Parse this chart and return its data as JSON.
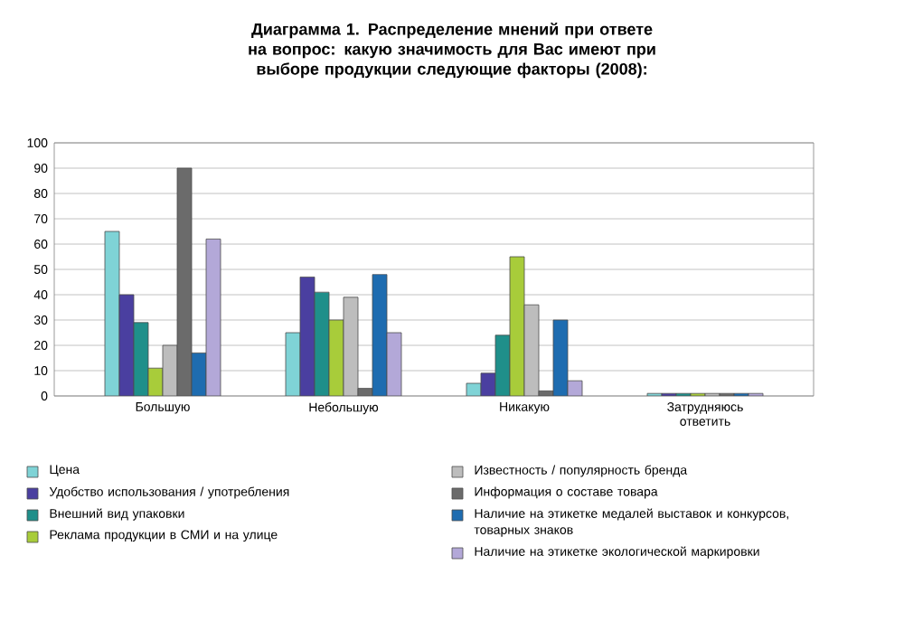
{
  "chart_data": {
    "type": "bar",
    "title": "Диаграмма 1. Распределение мнений при ответе на вопрос: какую значимость для Вас имеют при выборе продукции следующие факторы (2008):",
    "categories": [
      "Большую",
      "Небольшую",
      "Никакую",
      "Затрудняюсь ответить"
    ],
    "series": [
      {
        "name": "Цена",
        "color": "#7fd3d6",
        "values": [
          65,
          25,
          5,
          1
        ]
      },
      {
        "name": "Удобство использования / употребления",
        "color": "#4a3fa0",
        "values": [
          40,
          47,
          9,
          1
        ]
      },
      {
        "name": "Внешний вид упаковки",
        "color": "#1f8f8a",
        "values": [
          29,
          41,
          24,
          1
        ]
      },
      {
        "name": "Реклама продукции в СМИ и на улице",
        "color": "#a8cc3a",
        "values": [
          11,
          30,
          55,
          1
        ]
      },
      {
        "name": "Известность / популярность бренда",
        "color": "#bdbdbd",
        "values": [
          20,
          39,
          36,
          1
        ]
      },
      {
        "name": "Информация о составе товара",
        "color": "#6b6b6b",
        "values": [
          90,
          3,
          2,
          1
        ]
      },
      {
        "name": "Наличие на этикетке медалей выставок и конкурсов, товарных знаков",
        "color": "#1e6cb0",
        "values": [
          17,
          48,
          30,
          1
        ]
      },
      {
        "name": "Наличие на этикетке экологической маркировки",
        "color": "#b3a8d8",
        "values": [
          62,
          25,
          6,
          1
        ]
      }
    ],
    "ylim": [
      0,
      100
    ],
    "yticks": [
      0,
      10,
      20,
      30,
      40,
      50,
      60,
      70,
      80,
      90,
      100
    ],
    "grid": "y",
    "legend": "bottom"
  }
}
